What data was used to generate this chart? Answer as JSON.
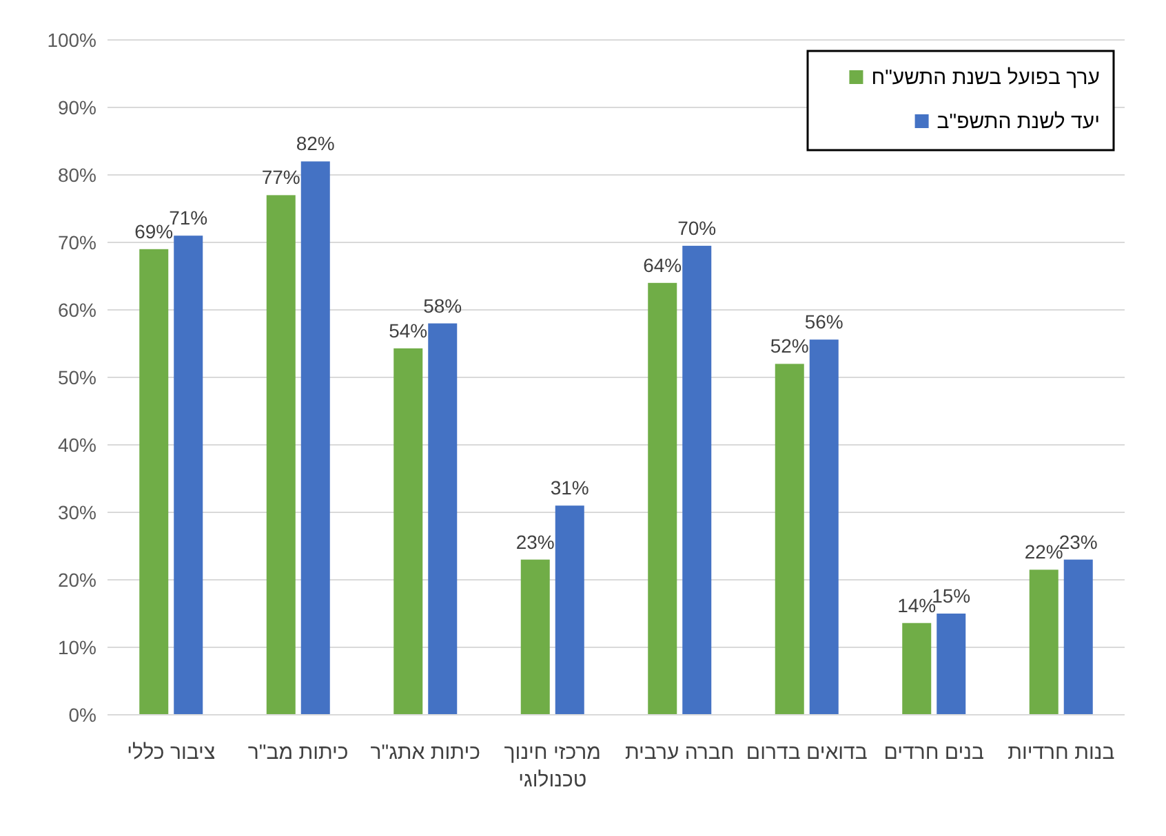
{
  "chart_data": {
    "type": "bar",
    "categories": [
      "ציבור כללי",
      "כיתות מב\"ר",
      "כיתות אתג\"ר",
      "מרכזי חינוך טכנולוגי",
      "חברה ערבית",
      "בדואים בדרום",
      "בנים חרדים",
      "בנות חרדיות"
    ],
    "series": [
      {
        "name": "ערך בפועל בשנת התשע\"ח",
        "color": "#70ad47",
        "values": [
          69,
          77,
          54.3,
          23,
          64,
          52,
          13.6,
          21.5
        ],
        "value_labels": [
          "69%",
          "77%",
          "54%",
          "23%",
          "64%",
          "52%",
          "14%",
          "22%"
        ]
      },
      {
        "name": "יעד לשנת התשפ\"ב",
        "color": "#4472c4",
        "values": [
          71,
          82,
          58,
          31,
          69.5,
          55.6,
          15,
          23
        ],
        "value_labels": [
          "71%",
          "82%",
          "58%",
          "31%",
          "70%",
          "56%",
          "15%",
          "23%"
        ]
      }
    ],
    "ylim": [
      0,
      100
    ],
    "yticks": [
      {
        "value": 0,
        "label": "0%"
      },
      {
        "value": 10,
        "label": "10%"
      },
      {
        "value": 20,
        "label": "20%"
      },
      {
        "value": 30,
        "label": "30%"
      },
      {
        "value": 40,
        "label": "40%"
      },
      {
        "value": 50,
        "label": "50%"
      },
      {
        "value": 60,
        "label": "60%"
      },
      {
        "value": 70,
        "label": "70%"
      },
      {
        "value": 80,
        "label": "80%"
      },
      {
        "value": 90,
        "label": "90%"
      },
      {
        "value": 100,
        "label": "100%"
      }
    ],
    "grid": "y",
    "legend": "top right"
  }
}
